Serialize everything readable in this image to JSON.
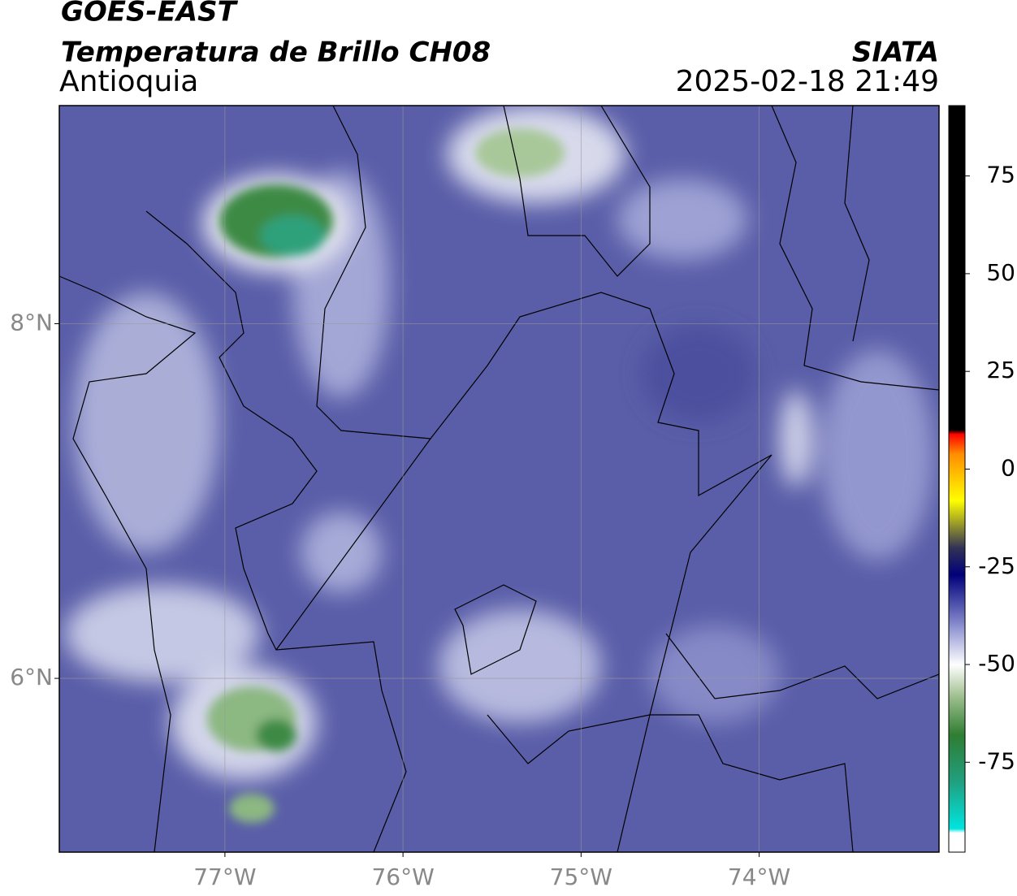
{
  "chart_data": {
    "type": "map",
    "title": "GOES-EAST",
    "subtitle": "Temperatura de Brillo CH08",
    "region": "Antioquia",
    "source": "SIATA",
    "timestamp": "2025-02-18 21:49",
    "xlim": [
      -77.93,
      -72.99
    ],
    "ylim": [
      5.02,
      9.23
    ],
    "xticks": [
      {
        "value": -77,
        "label": "77°W"
      },
      {
        "value": -76,
        "label": "76°W"
      },
      {
        "value": -75,
        "label": "75°W"
      },
      {
        "value": -74,
        "label": "74°W"
      }
    ],
    "yticks": [
      {
        "value": 6,
        "label": "6°N"
      },
      {
        "value": 8,
        "label": "8°N"
      }
    ],
    "grid": true,
    "colorbar": {
      "lim": [
        -98,
        93
      ],
      "ticks": [
        -75,
        -50,
        -25,
        0,
        25,
        50,
        75
      ],
      "stops": [
        {
          "value": 93,
          "color": "#000000"
        },
        {
          "value": 10,
          "color": "#000000"
        },
        {
          "value": 9,
          "color": "#ff0000"
        },
        {
          "value": 4,
          "color": "#ff8c00"
        },
        {
          "value": -8,
          "color": "#ffff00"
        },
        {
          "value": -20,
          "color": "#333355"
        },
        {
          "value": -27,
          "color": "#00007a"
        },
        {
          "value": -40,
          "color": "#8a8fd0"
        },
        {
          "value": -50,
          "color": "#ffffff"
        },
        {
          "value": -58,
          "color": "#a0c090"
        },
        {
          "value": -68,
          "color": "#2e7d32"
        },
        {
          "value": -80,
          "color": "#20a080"
        },
        {
          "value": -92,
          "color": "#00e5e0"
        },
        {
          "value": -93,
          "color": "#ffffff"
        },
        {
          "value": -98,
          "color": "#ffffff"
        }
      ]
    }
  }
}
